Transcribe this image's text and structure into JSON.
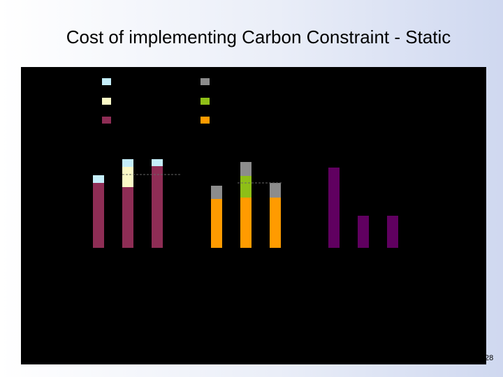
{
  "slide": {
    "title": "Cost of implementing Carbon Constraint - Static",
    "page_number": "28"
  },
  "chart_data": {
    "type": "bar",
    "title": "",
    "xlabel": "",
    "ylabel": "",
    "ylim": [
      0,
      160
    ],
    "grid": false,
    "legend_position": "top-left",
    "legend_entries": [
      {
        "color": "#c5eefa"
      },
      {
        "color": "#fbfac7"
      },
      {
        "color": "#8e2d55"
      },
      {
        "color": "#8c8c8c"
      },
      {
        "color": "#8ebf17"
      },
      {
        "color": "#ff9b00"
      }
    ],
    "groups": [
      {
        "bars": [
          {
            "segments": [
              {
                "value": 93,
                "color": "#8e2d55"
              },
              {
                "value": 11,
                "color": "#c5eefa"
              }
            ]
          },
          {
            "segments": [
              {
                "value": 87,
                "color": "#8e2d55"
              },
              {
                "value": 29,
                "color": "#fbfac7"
              },
              {
                "value": 11,
                "color": "#c5eefa"
              }
            ]
          },
          {
            "segments": [
              {
                "value": 117,
                "color": "#8e2d55"
              },
              {
                "value": 10,
                "color": "#c5eefa"
              }
            ]
          }
        ]
      },
      {
        "bars": [
          {
            "segments": [
              {
                "value": 70,
                "color": "#ff9b00"
              },
              {
                "value": 19,
                "color": "#8c8c8c"
              }
            ]
          },
          {
            "segments": [
              {
                "value": 72,
                "color": "#ff9b00"
              },
              {
                "value": 31,
                "color": "#8ebf17"
              },
              {
                "value": 20,
                "color": "#8c8c8c"
              }
            ]
          },
          {
            "segments": [
              {
                "value": 72,
                "color": "#ff9b00"
              },
              {
                "value": 21,
                "color": "#8c8c8c"
              }
            ]
          }
        ]
      },
      {
        "bars": [
          {
            "segments": [
              {
                "value": 115,
                "color": "#600060"
              }
            ]
          },
          {
            "segments": [
              {
                "value": 46,
                "color": "#600060"
              }
            ]
          },
          {
            "segments": [
              {
                "value": 46,
                "color": "#600060"
              }
            ]
          }
        ]
      }
    ]
  }
}
